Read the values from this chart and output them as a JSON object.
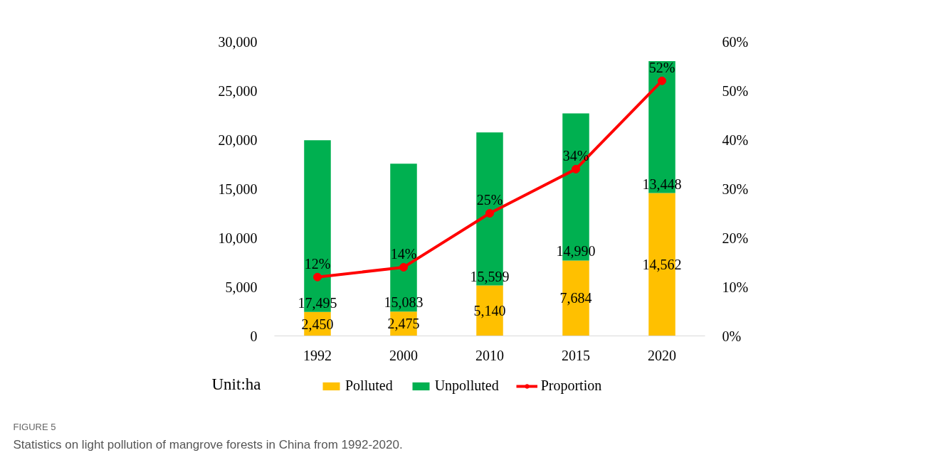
{
  "chart_data": {
    "type": "bar",
    "categories": [
      "1992",
      "2000",
      "2010",
      "2015",
      "2020"
    ],
    "series": [
      {
        "name": "Polluted",
        "color": "#ffc000",
        "values": [
          2450,
          2475,
          5140,
          7684,
          14562
        ],
        "value_labels": [
          "2,450",
          "2,475",
          "5,140",
          "7,684",
          "14,562"
        ]
      },
      {
        "name": "Unpolluted",
        "color": "#00b050",
        "values": [
          17495,
          15083,
          15599,
          14990,
          13448
        ],
        "value_labels": [
          "17,495",
          "15,083",
          "15,599",
          "14,990",
          "13,448"
        ]
      },
      {
        "name": "Proportion",
        "type": "line",
        "axis": "y2",
        "color": "#ff0000",
        "values": [
          12,
          14,
          25,
          34,
          52
        ],
        "value_labels": [
          "12%",
          "14%",
          "25%",
          "34%",
          "52%"
        ]
      }
    ],
    "stacked": true,
    "marker": "circle",
    "line_style": "solid",
    "legend": "bottom",
    "grid": false,
    "ylim": [
      0,
      30000
    ],
    "yticks": [
      {
        "value": 0,
        "label": "0"
      },
      {
        "value": 5000,
        "label": "5,000"
      },
      {
        "value": 10000,
        "label": "10,000"
      },
      {
        "value": 15000,
        "label": "15,000"
      },
      {
        "value": 20000,
        "label": "20,000"
      },
      {
        "value": 25000,
        "label": "25,000"
      },
      {
        "value": 30000,
        "label": "30,000"
      }
    ],
    "y2lim": [
      0,
      60
    ],
    "y2ticks": [
      {
        "value": 0,
        "label": "0%"
      },
      {
        "value": 10,
        "label": "10%"
      },
      {
        "value": 20,
        "label": "20%"
      },
      {
        "value": 30,
        "label": "30%"
      },
      {
        "value": 40,
        "label": "40%"
      },
      {
        "value": 50,
        "label": "50%"
      },
      {
        "value": 60,
        "label": "60%"
      }
    ],
    "annotations": [
      "Unit:ha",
      "FIGURE 5",
      "Statistics on light pollution of mangrove forests in China from 1992-2020."
    ]
  }
}
